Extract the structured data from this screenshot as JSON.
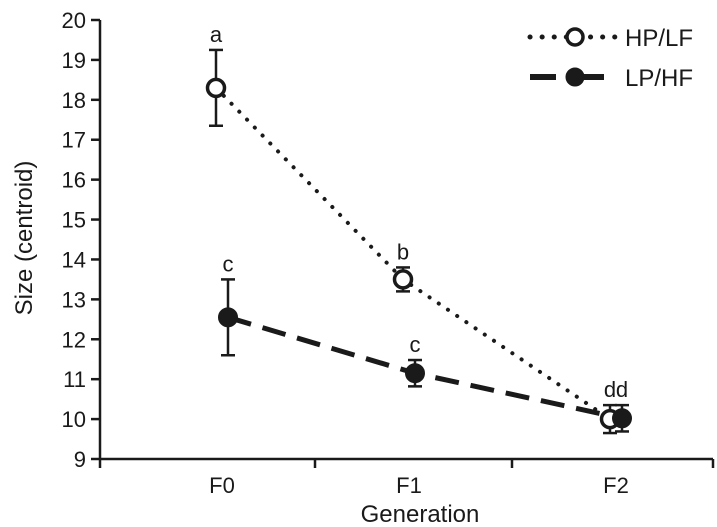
{
  "chart_data": {
    "type": "line",
    "xlabel": "Generation",
    "ylabel": "Size (centroid)",
    "categories": [
      "F0",
      "F1",
      "F2"
    ],
    "ylim": [
      9,
      20
    ],
    "yticks": [
      9,
      10,
      11,
      12,
      13,
      14,
      15,
      16,
      17,
      18,
      19,
      20
    ],
    "grid": false,
    "legend_position": "top-right",
    "series": [
      {
        "name": "HP/LF",
        "marker": "open-circle",
        "line_style": "dotted",
        "values": [
          18.3,
          13.5,
          10.0
        ],
        "error": [
          0.95,
          0.3,
          0.35
        ],
        "labels": [
          "a",
          "b",
          "d"
        ]
      },
      {
        "name": "LP/HF",
        "marker": "filled-circle",
        "line_style": "dashed",
        "values": [
          12.55,
          11.15,
          10.02
        ],
        "error": [
          0.95,
          0.33,
          0.33
        ],
        "labels": [
          "c",
          "c",
          "d"
        ]
      }
    ],
    "colors": {
      "ink": "#1a1a1a",
      "background": "#ffffff"
    }
  }
}
